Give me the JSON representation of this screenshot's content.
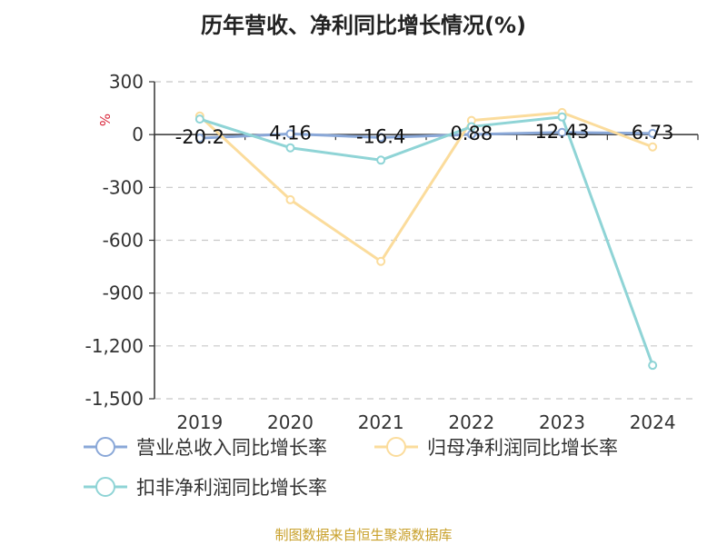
{
  "chart_data": {
    "type": "line",
    "title": "历年营收、净利同比增长情况(%)",
    "ylabel": "%",
    "categories": [
      "2019",
      "2020",
      "2021",
      "2022",
      "2023",
      "2024"
    ],
    "ylim": [
      -1500,
      300
    ],
    "yticks": [
      300,
      0,
      -300,
      -600,
      -900,
      -1200,
      -1500
    ],
    "ytick_labels": [
      "300",
      "0",
      "-300",
      "-600",
      "-900",
      "-1,200",
      "-1,500"
    ],
    "grid": true,
    "legend_position": "bottom",
    "series": [
      {
        "name": "营业总收入同比增长率",
        "color": "#8aa8d8",
        "values": [
          -20.2,
          4.16,
          -16.4,
          0.88,
          12.43,
          6.73
        ],
        "labels": [
          "-20.2",
          "4.16",
          "-16.4",
          "0.88",
          "12.43",
          "6.73"
        ]
      },
      {
        "name": "归母净利润同比增长率",
        "color": "#fbdc9c",
        "values": [
          105,
          -370,
          -720,
          80,
          125,
          -70
        ]
      },
      {
        "name": "扣非净利润同比增长率",
        "color": "#8fd4d6",
        "values": [
          88,
          -75,
          -145,
          45,
          100,
          -1310
        ]
      }
    ]
  },
  "footer": {
    "source": "制图数据来自恒生聚源数据库"
  }
}
